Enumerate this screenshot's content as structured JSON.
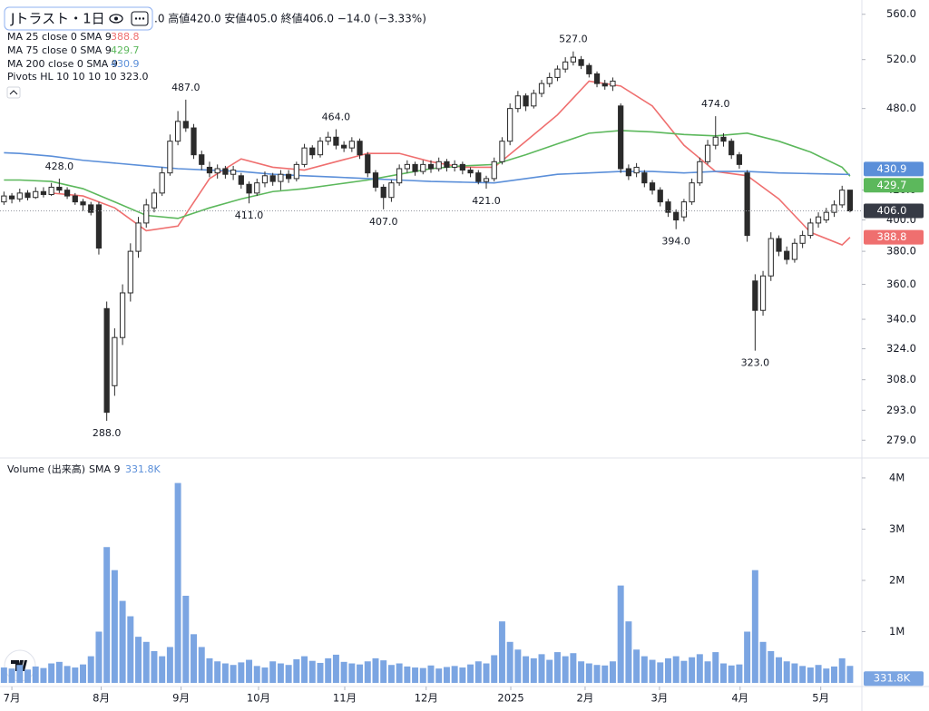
{
  "chart_data": [
    {
      "type": "candlestick",
      "symbol": "Jトラスト・1日",
      "ohlc_text": ".0 高値420.0 安値405.0 終値406.0 −14.0 (−3.33%)",
      "log_scale": true,
      "ylim": [
        273,
        569
      ],
      "yticks": [
        {
          "value": 279,
          "label": "279.0"
        },
        {
          "value": 293,
          "label": "293.0"
        },
        {
          "value": 308,
          "label": "308.0"
        },
        {
          "value": 324,
          "label": "324.0"
        },
        {
          "value": 340,
          "label": "340.0"
        },
        {
          "value": 360,
          "label": "360.0"
        },
        {
          "value": 380,
          "label": "380.0"
        },
        {
          "value": 400,
          "label": "400.0"
        },
        {
          "value": 420,
          "label": "420.0"
        },
        {
          "value": 480,
          "label": "480.0"
        },
        {
          "value": 520,
          "label": "520.0"
        },
        {
          "value": 560,
          "label": "560.0"
        }
      ],
      "xlim": [
        -0.5,
        108.5
      ],
      "xticks": [
        {
          "value": 1,
          "label": "7月"
        },
        {
          "value": 12.3,
          "label": "8月"
        },
        {
          "value": 22.4,
          "label": "9月"
        },
        {
          "value": 32.2,
          "label": "10月"
        },
        {
          "value": 43.1,
          "label": "11月"
        },
        {
          "value": 53.4,
          "label": "12月"
        },
        {
          "value": 64.1,
          "label": "2025"
        },
        {
          "value": 73.5,
          "label": "2月"
        },
        {
          "value": 82.9,
          "label": "3月"
        },
        {
          "value": 93.1,
          "label": "4月"
        },
        {
          "value": 103.3,
          "label": "5月"
        }
      ],
      "up_color": "#ffffff",
      "down_color": "#2b2b2b",
      "edge_color": "#2b2b2b",
      "open": [
        412,
        416,
        414,
        418,
        415,
        419,
        417,
        422,
        420,
        416,
        412,
        410,
        410,
        346,
        305,
        330,
        355,
        380,
        398,
        408,
        418,
        432,
        455,
        470,
        465,
        445,
        436,
        432,
        435,
        431,
        430,
        424,
        418,
        425,
        430,
        426,
        431,
        428,
        438,
        450,
        445,
        455,
        458,
        452,
        450,
        455,
        445,
        432,
        422,
        415,
        425,
        435,
        438,
        433,
        438,
        435,
        440,
        436,
        438,
        434,
        432,
        426,
        428,
        440,
        455,
        480,
        490,
        482,
        492,
        500,
        505,
        512,
        518,
        520,
        515,
        508,
        500,
        498,
        482,
        435,
        432,
        432,
        425,
        420,
        412,
        405,
        402,
        412,
        425,
        440,
        452,
        458,
        455,
        445,
        432,
        362,
        345,
        365,
        388,
        380,
        375,
        385,
        390,
        398,
        400,
        405,
        410,
        420
      ],
      "high": [
        419,
        418,
        421,
        420,
        422,
        422,
        425,
        428,
        422,
        418,
        414,
        412,
        412,
        350,
        335,
        360,
        385,
        402,
        414,
        421,
        436,
        460,
        478,
        487,
        468,
        448,
        440,
        438,
        437,
        437,
        432,
        426,
        428,
        433,
        432,
        434,
        434,
        440,
        453,
        452,
        458,
        462,
        464,
        455,
        458,
        457,
        447,
        434,
        424,
        427,
        438,
        441,
        440,
        441,
        441,
        443,
        442,
        441,
        440,
        436,
        434,
        430,
        443,
        458,
        484,
        494,
        492,
        495,
        503,
        509,
        515,
        522,
        527,
        523,
        517,
        510,
        503,
        505,
        484,
        438,
        439,
        434,
        427,
        422,
        414,
        407,
        414,
        428,
        443,
        456,
        474,
        461,
        457,
        447,
        434,
        366,
        368,
        392,
        390,
        383,
        388,
        393,
        401,
        405,
        408,
        413,
        423,
        420
      ],
      "low": [
        410,
        411,
        412,
        413,
        414,
        415,
        416,
        418,
        414,
        410,
        406,
        403,
        378,
        288,
        300,
        326,
        350,
        376,
        395,
        405,
        416,
        430,
        452,
        462,
        442,
        434,
        429,
        428,
        428,
        427,
        421,
        411,
        416,
        422,
        423,
        420,
        425,
        426,
        436,
        442,
        443,
        452,
        449,
        447,
        447,
        442,
        429,
        419,
        407,
        412,
        423,
        432,
        430,
        431,
        432,
        433,
        433,
        433,
        431,
        429,
        424,
        421,
        426,
        438,
        452,
        477,
        478,
        480,
        489,
        497,
        502,
        509,
        515,
        512,
        505,
        497,
        495,
        494,
        432,
        427,
        429,
        422,
        417,
        409,
        402,
        394,
        399,
        410,
        423,
        438,
        449,
        451,
        442,
        435,
        386,
        323,
        342,
        362,
        377,
        372,
        373,
        382,
        388,
        395,
        398,
        402,
        408,
        405
      ],
      "close": [
        416,
        414,
        418,
        415,
        419,
        417,
        422,
        420,
        416,
        412,
        410,
        405,
        382,
        292,
        330,
        355,
        380,
        398,
        410,
        418,
        432,
        455,
        470,
        465,
        445,
        438,
        432,
        435,
        431,
        434,
        424,
        418,
        425,
        430,
        426,
        431,
        428,
        438,
        450,
        445,
        455,
        458,
        452,
        450,
        455,
        445,
        432,
        422,
        415,
        425,
        435,
        438,
        433,
        438,
        435,
        440,
        436,
        438,
        434,
        432,
        426,
        428,
        440,
        455,
        480,
        490,
        482,
        492,
        500,
        505,
        512,
        518,
        522,
        515,
        508,
        500,
        498,
        502,
        435,
        430,
        436,
        425,
        420,
        412,
        405,
        400,
        412,
        425,
        440,
        452,
        458,
        455,
        445,
        438,
        390,
        345,
        365,
        388,
        380,
        375,
        385,
        390,
        398,
        402,
        405,
        410,
        420,
        406
      ],
      "last_price": {
        "value": 406,
        "label": "406.0"
      },
      "series": [
        {
          "name": "MA 25 close 0 SMA 9",
          "color": "#ef6f6f",
          "x": [
            6,
            10,
            14,
            18,
            22,
            26,
            30,
            34,
            38,
            42,
            46,
            50,
            54,
            58,
            62,
            66,
            70,
            74,
            78,
            82,
            86,
            90,
            94,
            98,
            102,
            106,
            107
          ],
          "values": [
            418,
            416,
            408,
            393,
            396,
            428,
            442,
            436,
            434,
            440,
            446,
            446,
            440,
            436,
            436,
            455,
            475,
            502,
            498,
            482,
            452,
            433,
            430,
            414,
            392,
            384,
            388.8
          ]
        },
        {
          "name": "MA 75 close 0 SMA 9",
          "color": "#5cb85c",
          "x": [
            0,
            2,
            6,
            10,
            14,
            18,
            22,
            26,
            30,
            34,
            38,
            42,
            46,
            50,
            54,
            58,
            62,
            66,
            70,
            74,
            78,
            82,
            86,
            90,
            94,
            98,
            102,
            106,
            107
          ],
          "values": [
            427,
            427,
            426,
            421,
            412,
            403,
            401,
            408,
            414,
            419,
            421,
            424,
            427,
            431,
            435,
            437,
            438,
            445,
            453,
            461,
            463,
            462,
            460,
            459,
            461,
            455,
            447,
            436,
            429.7
          ]
        },
        {
          "name": "MA 200 close 0 SMA 9",
          "color": "#5b8fd9",
          "x": [
            0,
            2,
            6,
            10,
            14,
            18,
            22,
            26,
            30,
            34,
            38,
            42,
            46,
            50,
            54,
            58,
            62,
            66,
            70,
            74,
            78,
            82,
            86,
            90,
            94,
            98,
            102,
            106,
            107
          ],
          "values": [
            446.5,
            446,
            444,
            441,
            439,
            437,
            435,
            434,
            433,
            431,
            430,
            429,
            428,
            427,
            426,
            425.5,
            425,
            428,
            431,
            432,
            433,
            433,
            432,
            433,
            433,
            432,
            431.5,
            431,
            430.9
          ]
        }
      ],
      "pivots": {
        "name": "Pivots HL 10 10 10 10",
        "points": [
          {
            "x": 7,
            "value": 428,
            "label": "428.0",
            "kind": "high"
          },
          {
            "x": 13,
            "value": 288,
            "label": "288.0",
            "kind": "low"
          },
          {
            "x": 23,
            "value": 487,
            "label": "487.0",
            "kind": "high"
          },
          {
            "x": 31,
            "value": 411,
            "label": "411.0",
            "kind": "low"
          },
          {
            "x": 42,
            "value": 464,
            "label": "464.0",
            "kind": "high"
          },
          {
            "x": 48,
            "value": 407,
            "label": "407.0",
            "kind": "low"
          },
          {
            "x": 61,
            "value": 421,
            "label": "421.0",
            "kind": "low"
          },
          {
            "x": 72,
            "value": 527,
            "label": "527.0",
            "kind": "high"
          },
          {
            "x": 85,
            "value": 394,
            "label": "394.0",
            "kind": "low"
          },
          {
            "x": 90,
            "value": 474,
            "label": "474.0",
            "kind": "high"
          },
          {
            "x": 95,
            "value": 323,
            "label": "323.0",
            "kind": "low"
          }
        ]
      }
    },
    {
      "type": "bar",
      "title": "Volume (出来高)",
      "indicator": "SMA 9",
      "sma_value": {
        "value": 331800,
        "label": "331.8K"
      },
      "color": "#7ba5e2",
      "ylim": [
        0,
        4300000
      ],
      "yticks": [
        {
          "value": 1000000,
          "label": "1M"
        },
        {
          "value": 2000000,
          "label": "2M"
        },
        {
          "value": 3000000,
          "label": "3M"
        },
        {
          "value": 4000000,
          "label": "4M"
        }
      ],
      "values": [
        300000,
        280000,
        350000,
        260000,
        320000,
        290000,
        380000,
        410000,
        330000,
        300000,
        360000,
        520000,
        1000000,
        2650000,
        2200000,
        1600000,
        1300000,
        900000,
        800000,
        620000,
        520000,
        700000,
        3900000,
        1700000,
        950000,
        700000,
        480000,
        420000,
        380000,
        350000,
        400000,
        450000,
        330000,
        300000,
        420000,
        380000,
        350000,
        460000,
        520000,
        430000,
        390000,
        480000,
        550000,
        410000,
        380000,
        360000,
        420000,
        480000,
        440000,
        350000,
        380000,
        320000,
        300000,
        290000,
        340000,
        280000,
        310000,
        330000,
        300000,
        360000,
        420000,
        380000,
        540000,
        1200000,
        800000,
        650000,
        520000,
        480000,
        560000,
        450000,
        600000,
        520000,
        580000,
        420000,
        380000,
        350000,
        340000,
        420000,
        1900000,
        1200000,
        650000,
        520000,
        450000,
        400000,
        480000,
        520000,
        430000,
        500000,
        560000,
        420000,
        600000,
        380000,
        340000,
        360000,
        1000000,
        2200000,
        800000,
        620000,
        500000,
        420000,
        380000,
        330000,
        300000,
        350000,
        280000,
        320000,
        480000,
        331800
      ]
    }
  ]
}
